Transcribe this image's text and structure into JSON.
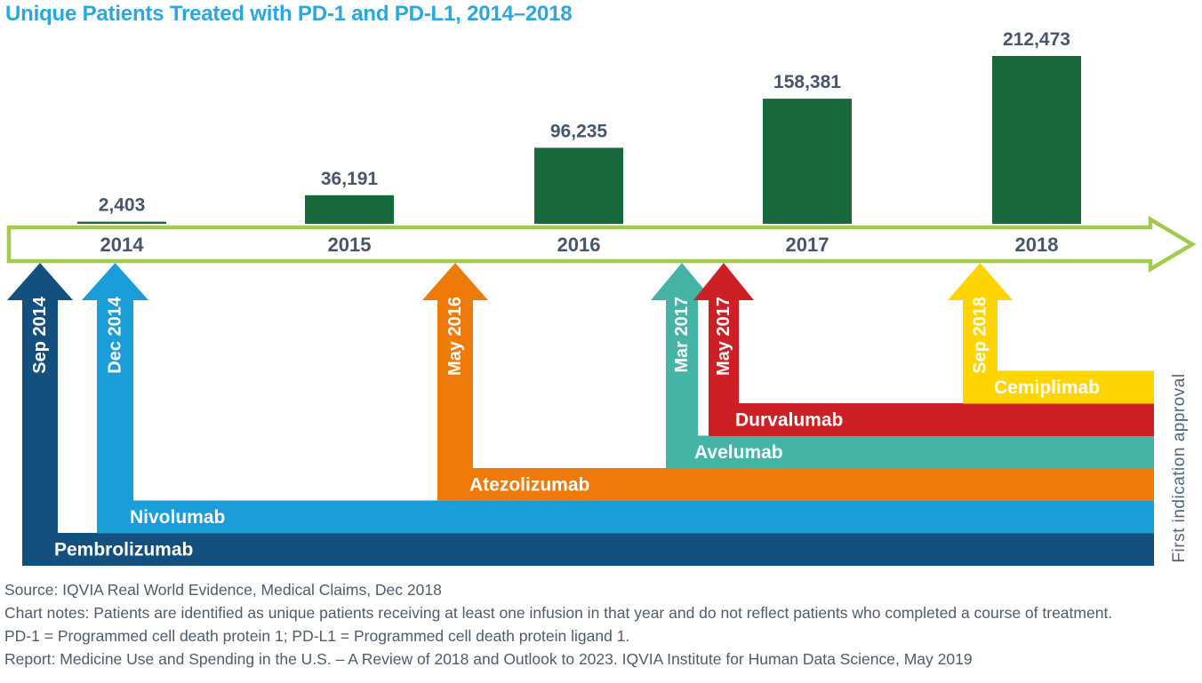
{
  "title": "Unique Patients Treated with PD-1 and PD-L1, 2014–2018",
  "colors": {
    "title": "#2BA7DF",
    "bar": "#17693B",
    "timeline": "#A2CA4B",
    "axis_text": "#47566B",
    "footer_text": "#4E5C6D",
    "right_label": "#55657A",
    "label_on_band": "#FFFFFF"
  },
  "chart_data": {
    "type": "bar",
    "title": "Unique Patients Treated with PD-1 and PD-L1, 2014–2018",
    "xlabel": "",
    "ylabel": "",
    "categories": [
      "2014",
      "2015",
      "2016",
      "2017",
      "2018"
    ],
    "values": [
      2403,
      36191,
      96235,
      158381,
      212473
    ],
    "value_labels": [
      "2,403",
      "36,191",
      "96,235",
      "158,381",
      "212,473"
    ],
    "ylim": [
      0,
      212473
    ],
    "grid": false,
    "legend": false,
    "x_axis_style": "green outlined block arrow pointing right with year labels inside",
    "right_axis_label": "First indication approval",
    "approvals": [
      {
        "drug": "Pembrolizumab",
        "date": "Sep 2014",
        "color": "#13507E"
      },
      {
        "drug": "Nivolumab",
        "date": "Dec 2014",
        "color": "#1B9DD9"
      },
      {
        "drug": "Atezolizumab",
        "date": "May 2016",
        "color": "#EE7A0A"
      },
      {
        "drug": "Avelumab",
        "date": "Mar 2017",
        "color": "#45B3A6"
      },
      {
        "drug": "Durvalumab",
        "date": "May 2017",
        "color": "#CC2026"
      },
      {
        "drug": "Cemiplimab",
        "date": "Sep 2018",
        "color": "#FFD500"
      }
    ]
  },
  "footer": {
    "lines": [
      "Source: IQVIA Real World Evidence, Medical Claims, Dec 2018",
      "Chart notes: Patients are identified as unique patients receiving at least one infusion in that year and do not reflect patients who completed a course of treatment.",
      "PD-1 = Programmed cell death protein 1; PD-L1 = Programmed cell death protein ligand 1.",
      "Report: Medicine Use and Spending in the U.S. – A Review of 2018 and Outlook to 2023. IQVIA Institute for Human Data Science, May 2019"
    ]
  }
}
